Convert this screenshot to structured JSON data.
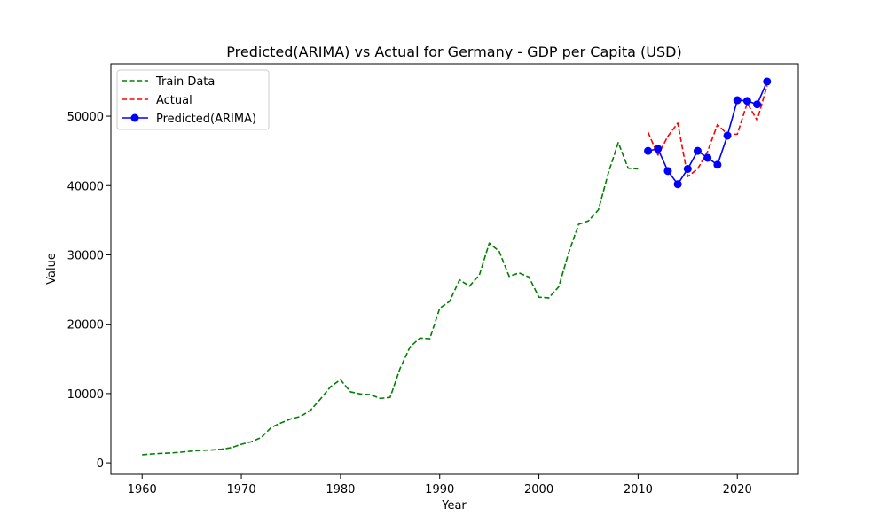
{
  "chart_data": {
    "type": "line",
    "title": "Predicted(ARIMA) vs Actual for Germany - GDP per Capita (USD)",
    "xlabel": "Year",
    "ylabel": "Value",
    "xlim": [
      1956.85,
      2026.15
    ],
    "ylim": [
      -1650,
      57550
    ],
    "xticks": [
      1960,
      1970,
      1980,
      1990,
      2000,
      2010,
      2020
    ],
    "yticks": [
      0,
      10000,
      20000,
      30000,
      40000,
      50000
    ],
    "grid": false,
    "legend_position": "upper left",
    "series": [
      {
        "name": "Train Data",
        "color": "#008000",
        "style": "dashed",
        "marker": "none",
        "points": [
          [
            1960,
            1170
          ],
          [
            1961,
            1290
          ],
          [
            1962,
            1380
          ],
          [
            1963,
            1440
          ],
          [
            1964,
            1560
          ],
          [
            1965,
            1700
          ],
          [
            1966,
            1820
          ],
          [
            1967,
            1860
          ],
          [
            1968,
            1970
          ],
          [
            1969,
            2200
          ],
          [
            1970,
            2680
          ],
          [
            1971,
            3050
          ],
          [
            1972,
            3650
          ],
          [
            1973,
            5100
          ],
          [
            1974,
            5770
          ],
          [
            1975,
            6350
          ],
          [
            1976,
            6720
          ],
          [
            1977,
            7630
          ],
          [
            1978,
            9250
          ],
          [
            1979,
            11000
          ],
          [
            1980,
            12000
          ],
          [
            1981,
            10250
          ],
          [
            1982,
            9950
          ],
          [
            1983,
            9850
          ],
          [
            1984,
            9300
          ],
          [
            1985,
            9450
          ],
          [
            1986,
            13600
          ],
          [
            1987,
            16700
          ],
          [
            1988,
            18000
          ],
          [
            1989,
            17900
          ],
          [
            1990,
            22300
          ],
          [
            1991,
            23300
          ],
          [
            1992,
            26400
          ],
          [
            1993,
            25500
          ],
          [
            1994,
            27100
          ],
          [
            1995,
            31700
          ],
          [
            1996,
            30500
          ],
          [
            1997,
            26900
          ],
          [
            1998,
            27400
          ],
          [
            1999,
            26800
          ],
          [
            2000,
            23900
          ],
          [
            2001,
            23800
          ],
          [
            2002,
            25400
          ],
          [
            2003,
            30300
          ],
          [
            2004,
            34400
          ],
          [
            2005,
            34900
          ],
          [
            2006,
            36500
          ],
          [
            2007,
            41800
          ],
          [
            2008,
            46200
          ],
          [
            2009,
            42500
          ],
          [
            2010,
            42400
          ]
        ]
      },
      {
        "name": "Actual",
        "color": "#ff0000",
        "style": "dashed",
        "marker": "none",
        "points": [
          [
            2011,
            47700
          ],
          [
            2012,
            44400
          ],
          [
            2013,
            47100
          ],
          [
            2014,
            49000
          ],
          [
            2015,
            41300
          ],
          [
            2016,
            42400
          ],
          [
            2017,
            44900
          ],
          [
            2018,
            48800
          ],
          [
            2019,
            47400
          ],
          [
            2020,
            47400
          ],
          [
            2021,
            51900
          ],
          [
            2022,
            49400
          ],
          [
            2023,
            54400
          ]
        ]
      },
      {
        "name": "Predicted(ARIMA)",
        "color": "#0000ff",
        "style": "solid",
        "marker": "circle",
        "points": [
          [
            2011,
            45000
          ],
          [
            2012,
            45300
          ],
          [
            2013,
            42100
          ],
          [
            2014,
            40200
          ],
          [
            2015,
            42400
          ],
          [
            2016,
            45000
          ],
          [
            2017,
            44000
          ],
          [
            2018,
            43000
          ],
          [
            2019,
            47200
          ],
          [
            2020,
            52300
          ],
          [
            2021,
            52200
          ],
          [
            2022,
            51700
          ],
          [
            2023,
            55000
          ]
        ]
      }
    ]
  }
}
